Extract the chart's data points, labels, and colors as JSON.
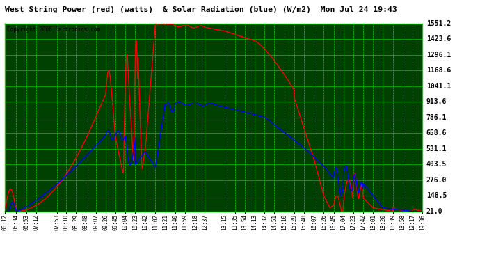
{
  "title": "West String Power (red) (watts)  & Solar Radiation (blue) (W/m2)  Mon Jul 24 19:43",
  "copyright": "Copyright 2006 Cartronics.com",
  "fig_bg_color": "#ffffff",
  "plot_bg_color": "#004000",
  "grid_color": "#00cc00",
  "y_ticks": [
    21.0,
    148.5,
    276.0,
    403.5,
    531.1,
    658.6,
    786.1,
    913.6,
    1041.1,
    1168.6,
    1296.1,
    1423.6,
    1551.2
  ],
  "x_labels": [
    "06:12",
    "06:34",
    "06:53",
    "07:12",
    "07:53",
    "08:10",
    "08:29",
    "08:48",
    "09:07",
    "09:26",
    "09:45",
    "10:04",
    "10:23",
    "10:42",
    "11:02",
    "11:21",
    "11:40",
    "11:59",
    "12:18",
    "12:37",
    "13:15",
    "13:35",
    "13:54",
    "14:13",
    "14:32",
    "14:51",
    "15:10",
    "15:29",
    "15:48",
    "16:07",
    "16:26",
    "16:45",
    "17:04",
    "17:23",
    "17:42",
    "18:01",
    "18:20",
    "18:39",
    "18:58",
    "19:17",
    "19:36"
  ],
  "ymin": 21.0,
  "ymax": 1551.2
}
